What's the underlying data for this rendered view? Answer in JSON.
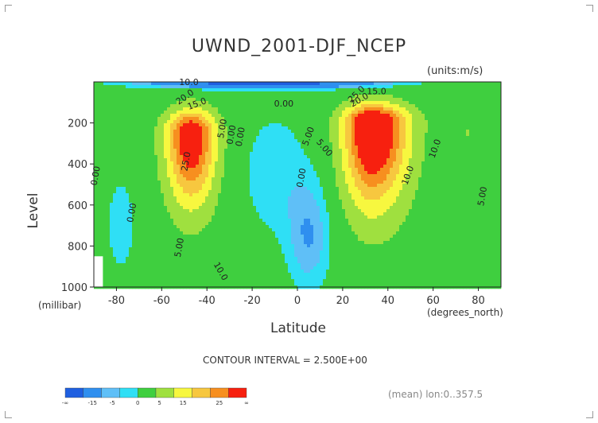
{
  "chart_data": {
    "type": "heatmap",
    "title": "UWND_2001-DJF_NCEP",
    "units_label": "(units:m/s)",
    "xlabel": "Latitude",
    "x_units": "(degrees_north)",
    "ylabel": "Level",
    "y_units": "(millibar)",
    "xlim": [
      -90,
      90
    ],
    "ylim": [
      1000,
      0
    ],
    "x_ticks": [
      "-80",
      "-60",
      "-40",
      "-20",
      "0",
      "20",
      "40",
      "60",
      "80"
    ],
    "x_tick_values": [
      -80,
      -60,
      -40,
      -20,
      0,
      20,
      40,
      60,
      80
    ],
    "y_ticks": [
      "200",
      "400",
      "600",
      "800",
      "1000"
    ],
    "y_tick_values": [
      200,
      400,
      600,
      800,
      1000
    ],
    "contour_labels": [
      "10.0",
      "15.0",
      "20.0",
      "25.0",
      "15.0",
      "20.0",
      "25.0",
      "10.0",
      "5.00",
      "0.00",
      "0.00",
      "5.00",
      "10.0",
      "5.00",
      "0.00",
      "0.00",
      "0.00",
      "5.00",
      "10.0",
      "5.00",
      "0.00"
    ],
    "jets": [
      {
        "lat": -47,
        "level": 250,
        "peak": 30
      },
      {
        "lat": 33,
        "level": 200,
        "peak": 35
      }
    ],
    "contour_interval_text": "CONTOUR INTERVAL = 2.500E+00",
    "colorbar": {
      "labels": [
        "-∞",
        "-15",
        "-5",
        "0",
        "5",
        "15",
        "25",
        "∞"
      ],
      "colors": [
        "#1f5fe0",
        "#2f8fef",
        "#5fbff7",
        "#2fdff5",
        "#3fcf3f",
        "#9fe03f",
        "#f7f73f",
        "#f7c73f",
        "#f78f1f",
        "#f7200f"
      ]
    },
    "footer_text": "(mean) lon:0..357.5"
  }
}
